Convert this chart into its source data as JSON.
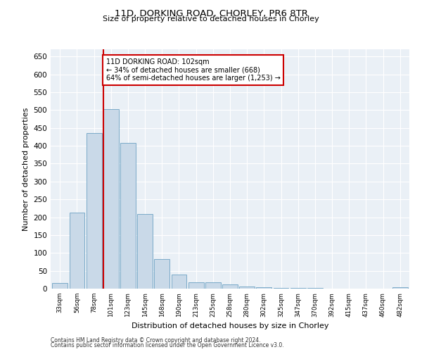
{
  "title": "11D, DORKING ROAD, CHORLEY, PR6 8TR",
  "subtitle": "Size of property relative to detached houses in Chorley",
  "xlabel": "Distribution of detached houses by size in Chorley",
  "ylabel": "Number of detached properties",
  "bin_labels": [
    "33sqm",
    "56sqm",
    "78sqm",
    "101sqm",
    "123sqm",
    "145sqm",
    "168sqm",
    "190sqm",
    "213sqm",
    "235sqm",
    "258sqm",
    "280sqm",
    "302sqm",
    "325sqm",
    "347sqm",
    "370sqm",
    "392sqm",
    "415sqm",
    "437sqm",
    "460sqm",
    "482sqm"
  ],
  "bar_values": [
    15,
    213,
    435,
    502,
    408,
    208,
    83,
    40,
    18,
    17,
    12,
    6,
    3,
    2,
    1,
    1,
    0,
    0,
    0,
    0,
    4
  ],
  "bar_color": "#c9d9e8",
  "bar_edge_color": "#7aaac8",
  "annotation_text": "11D DORKING ROAD: 102sqm\n← 34% of detached houses are smaller (668)\n64% of semi-detached houses are larger (1,253) →",
  "annotation_box_color": "#ffffff",
  "annotation_box_edge_color": "#cc0000",
  "vline_color": "#cc0000",
  "footer1": "Contains HM Land Registry data © Crown copyright and database right 2024.",
  "footer2": "Contains public sector information licensed under the Open Government Licence v3.0.",
  "background_color": "#eaf0f6",
  "ylim": [
    0,
    670
  ],
  "yticks": [
    0,
    50,
    100,
    150,
    200,
    250,
    300,
    350,
    400,
    450,
    500,
    550,
    600,
    650
  ]
}
